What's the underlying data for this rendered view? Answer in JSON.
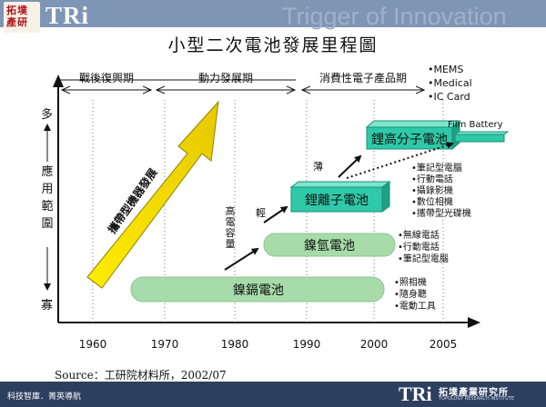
{
  "header": {
    "logo_cn": "拓墣\n產研",
    "logo_text": "TRi",
    "logo_sub": "TOPOLOGY RESEARCH INSTITUTE",
    "header_text": "Trigger of Innovation"
  },
  "title": "小型二次電池發展里程圖",
  "y_axis": {
    "label": "應用範圍",
    "top": "多",
    "bottom": "寡"
  },
  "x_ticks": [
    "1960",
    "1970",
    "1980",
    "1990",
    "2000",
    "2005"
  ],
  "periods": [
    {
      "label": "戰後復興期"
    },
    {
      "label": "動力發展期"
    },
    {
      "label": "消費性電子產品期"
    }
  ],
  "big_arrow_label": "攜帶型機器發展",
  "batteries": [
    {
      "name": "鎳鎘電池",
      "apps": [
        "照相機",
        "隨身聽",
        "電動工具"
      ]
    },
    {
      "name": "鎳氫電池",
      "apps": [
        "無線電話",
        "行動電話",
        "筆記型電腦"
      ]
    },
    {
      "name": "鋰離子電池",
      "apps": [
        "筆記型電腦",
        "行動電話",
        "攝錄影機",
        "數位相機",
        "攜帶型光碟機"
      ]
    },
    {
      "name": "鋰高分子電池",
      "apps": [
        "MEMS",
        "Medical",
        "IC Card"
      ]
    }
  ],
  "film_battery": "Film Battery",
  "trend_labels": {
    "high_capacity": "高電容量",
    "light": "輕",
    "thin": "薄"
  },
  "source": "Source：工研院材料所，2002/07",
  "footer": {
    "left": "科技智庫．菁英導航",
    "logo_text": "TRi",
    "cn": "拓墣產業研究所",
    "sub": "TOPOLOGY RESEARCH INSTITUTE"
  },
  "colors": {
    "teal_box": "#2ec9a8",
    "green_pill": "#a7dcaa",
    "yellow_arrow": "#f7e200",
    "header_bg": "#7f95b6",
    "footer_bg": "#2d3f5f"
  }
}
